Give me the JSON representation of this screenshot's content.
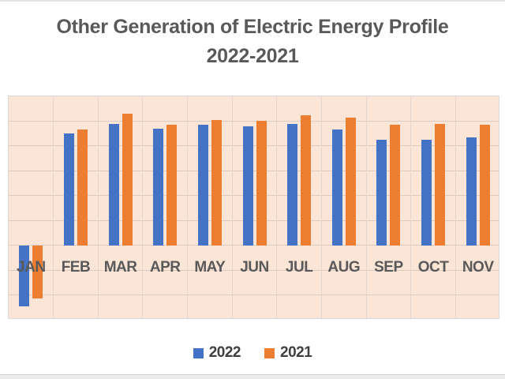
{
  "page": {
    "background": "#FFFFFF",
    "top_edge_line_color": "#E2E2E2",
    "bottom_bar_color": "#EBEBEB"
  },
  "chart_data": {
    "type": "bar",
    "title": "Other Generation of Electric Energy Profile 2022-2021",
    "title_lines": [
      "Other Generation of Electric Energy Profile",
      "2022-2021"
    ],
    "categories": [
      "JAN",
      "FEB",
      "MAR",
      "APR",
      "MAY",
      "JUN",
      "JUL",
      "AUG",
      "SEP",
      "OCT",
      "NOV"
    ],
    "series": [
      {
        "name": "2022",
        "color": "#4472C4",
        "values": [
          -2.45,
          4.5,
          4.9,
          4.7,
          4.85,
          4.8,
          4.9,
          4.65,
          4.25,
          4.25,
          4.35
        ]
      },
      {
        "name": "2021",
        "color": "#ED7D31",
        "values": [
          -2.15,
          4.65,
          5.3,
          4.85,
          5.05,
          5.0,
          5.25,
          5.15,
          4.85,
          4.9,
          4.85
        ]
      }
    ],
    "xlabel": "",
    "ylabel": "",
    "y_axis_tick_labels_visible": false,
    "ylim": [
      -3,
      6
    ],
    "gridline_interval": 1,
    "units_note": "relative gridline units; no numeric y-axis labels are shown in the chart",
    "grid": true,
    "legend_position": "bottom",
    "plot_background": "#FBE5D6",
    "gridline_color_h": "#D8CCC5",
    "gridline_color_v": "#E2D6CE",
    "title_color": "#595959",
    "axis_label_color": "#595959",
    "legend_text_color": "#3F3F3F"
  }
}
